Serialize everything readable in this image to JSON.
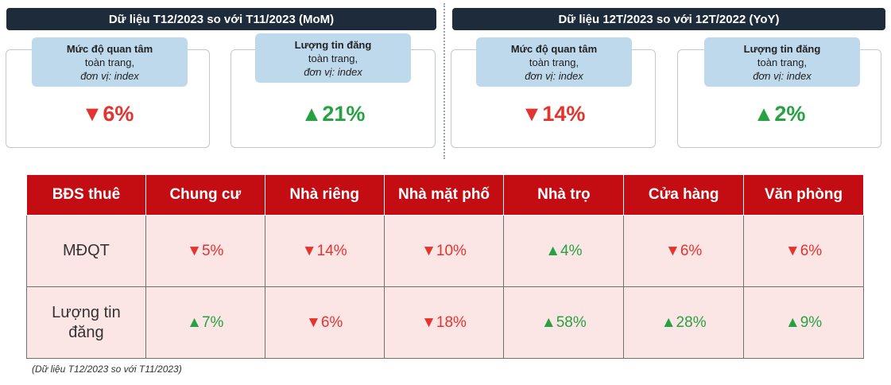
{
  "headers": {
    "left": "Dữ liệu T12/2023 so với T11/2023 (MoM)",
    "right": "Dữ liệu 12T/2023 so với 12T/2022 (YoY)"
  },
  "cards": [
    {
      "line1": "Mức độ quan tâm",
      "line2": "toàn trang,",
      "line3": "đơn vị: index",
      "value": "▼6%",
      "dir": "down"
    },
    {
      "line1": "Lượng tin đăng",
      "line2": "toàn trang,",
      "line3": "đơn vị: index",
      "value": "▲21%",
      "dir": "up"
    },
    {
      "line1": "Mức độ quan tâm",
      "line2": "toàn trang,",
      "line3": "đơn vị: index",
      "value": "▼14%",
      "dir": "down"
    },
    {
      "line1": "Lượng tin đăng",
      "line2": "toàn trang,",
      "line3": "đơn vị: index",
      "value": "▲2%",
      "dir": "up"
    }
  ],
  "table": {
    "columns": [
      "BĐS thuê",
      "Chung cư",
      "Nhà riêng",
      "Nhà mặt phố",
      "Nhà trọ",
      "Cửa hàng",
      "Văn phòng"
    ],
    "rows": [
      {
        "label": "MĐQT",
        "cells": [
          {
            "text": "▼5%",
            "dir": "down"
          },
          {
            "text": "▼14%",
            "dir": "down"
          },
          {
            "text": "▼10%",
            "dir": "down"
          },
          {
            "text": "▲4%",
            "dir": "up"
          },
          {
            "text": "▼6%",
            "dir": "down"
          },
          {
            "text": "▼6%",
            "dir": "down"
          }
        ]
      },
      {
        "label_line1": "Lượng tin",
        "label_line2": "đăng",
        "cells": [
          {
            "text": "▲7%",
            "dir": "up"
          },
          {
            "text": "▼6%",
            "dir": "down"
          },
          {
            "text": "▼18%",
            "dir": "down"
          },
          {
            "text": "▲58%",
            "dir": "up"
          },
          {
            "text": "▲28%",
            "dir": "up"
          },
          {
            "text": "▲9%",
            "dir": "up"
          }
        ]
      }
    ]
  },
  "footnote": "(Dữ liệu T12/2023 so với T11/2023)",
  "colors": {
    "down": "#e3342f",
    "up": "#27a243",
    "header_red": "#c40d12",
    "header_dark": "#1e2b3a"
  }
}
